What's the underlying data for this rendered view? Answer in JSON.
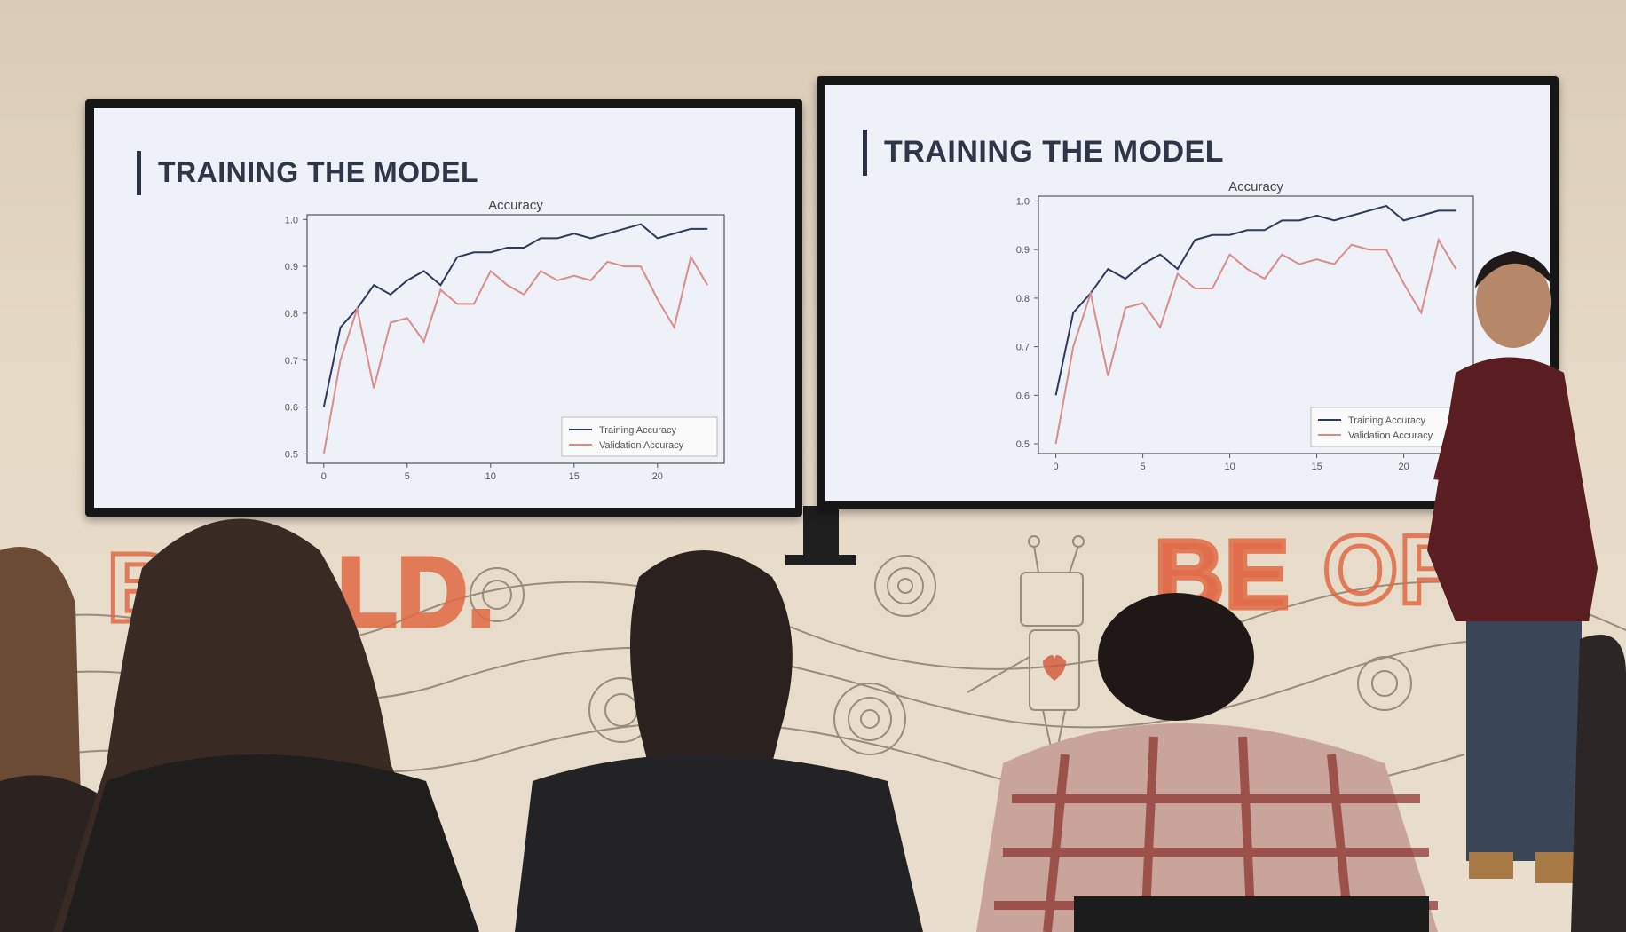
{
  "slides": [
    {
      "title": "TRAINING THE MODEL"
    },
    {
      "title": "TRAINING THE MODEL"
    }
  ],
  "mural": {
    "words": [
      "B",
      "LD.",
      "BE",
      "OP"
    ]
  },
  "chart_data": [
    {
      "type": "line",
      "title": "Accuracy",
      "x": [
        0,
        1,
        2,
        3,
        4,
        5,
        6,
        7,
        8,
        9,
        10,
        11,
        12,
        13,
        14,
        15,
        16,
        17,
        18,
        19,
        20,
        21,
        22,
        23
      ],
      "xticks": [
        0,
        5,
        10,
        15,
        20
      ],
      "yticks": [
        0.5,
        0.6,
        0.7,
        0.8,
        0.9,
        1.0
      ],
      "yticklabels": [
        "0.5",
        "0.6",
        "0.7",
        "0.8",
        "0.9",
        "1.0"
      ],
      "xlim": [
        -1,
        24
      ],
      "ylim": [
        0.48,
        1.01
      ],
      "legend_position": "bottom-right",
      "series": [
        {
          "name": "Training Accuracy",
          "color": "#2e3a5c",
          "values": [
            0.6,
            0.77,
            0.81,
            0.86,
            0.84,
            0.87,
            0.89,
            0.86,
            0.92,
            0.93,
            0.93,
            0.94,
            0.94,
            0.96,
            0.96,
            0.97,
            0.96,
            0.97,
            0.98,
            0.99,
            0.96,
            0.97,
            0.98,
            0.98
          ]
        },
        {
          "name": "Validation Accuracy",
          "color": "#d98c8c",
          "values": [
            0.5,
            0.7,
            0.81,
            0.64,
            0.78,
            0.79,
            0.74,
            0.85,
            0.82,
            0.82,
            0.89,
            0.86,
            0.84,
            0.89,
            0.87,
            0.88,
            0.87,
            0.91,
            0.9,
            0.9,
            0.83,
            0.77,
            0.92,
            0.86
          ]
        }
      ]
    },
    {
      "type": "line",
      "title": "Accuracy",
      "x": [
        0,
        1,
        2,
        3,
        4,
        5,
        6,
        7,
        8,
        9,
        10,
        11,
        12,
        13,
        14,
        15,
        16,
        17,
        18,
        19,
        20,
        21,
        22,
        23
      ],
      "xticks": [
        0,
        5,
        10,
        15,
        20
      ],
      "yticks": [
        0.5,
        0.6,
        0.7,
        0.8,
        0.9,
        1.0
      ],
      "yticklabels": [
        "0.5",
        "0.6",
        "0.7",
        "0.8",
        "0.9",
        "1.0"
      ],
      "xlim": [
        -1,
        24
      ],
      "ylim": [
        0.48,
        1.01
      ],
      "legend_position": "bottom-right",
      "series": [
        {
          "name": "Training Accuracy",
          "color": "#2e3a5c",
          "values": [
            0.6,
            0.77,
            0.81,
            0.86,
            0.84,
            0.87,
            0.89,
            0.86,
            0.92,
            0.93,
            0.93,
            0.94,
            0.94,
            0.96,
            0.96,
            0.97,
            0.96,
            0.97,
            0.98,
            0.99,
            0.96,
            0.97,
            0.98,
            0.98
          ]
        },
        {
          "name": "Validation Accuracy",
          "color": "#d98c8c",
          "values": [
            0.5,
            0.7,
            0.81,
            0.64,
            0.78,
            0.79,
            0.74,
            0.85,
            0.82,
            0.82,
            0.89,
            0.86,
            0.84,
            0.89,
            0.87,
            0.88,
            0.87,
            0.91,
            0.9,
            0.9,
            0.83,
            0.77,
            0.92,
            0.86
          ]
        }
      ]
    }
  ]
}
